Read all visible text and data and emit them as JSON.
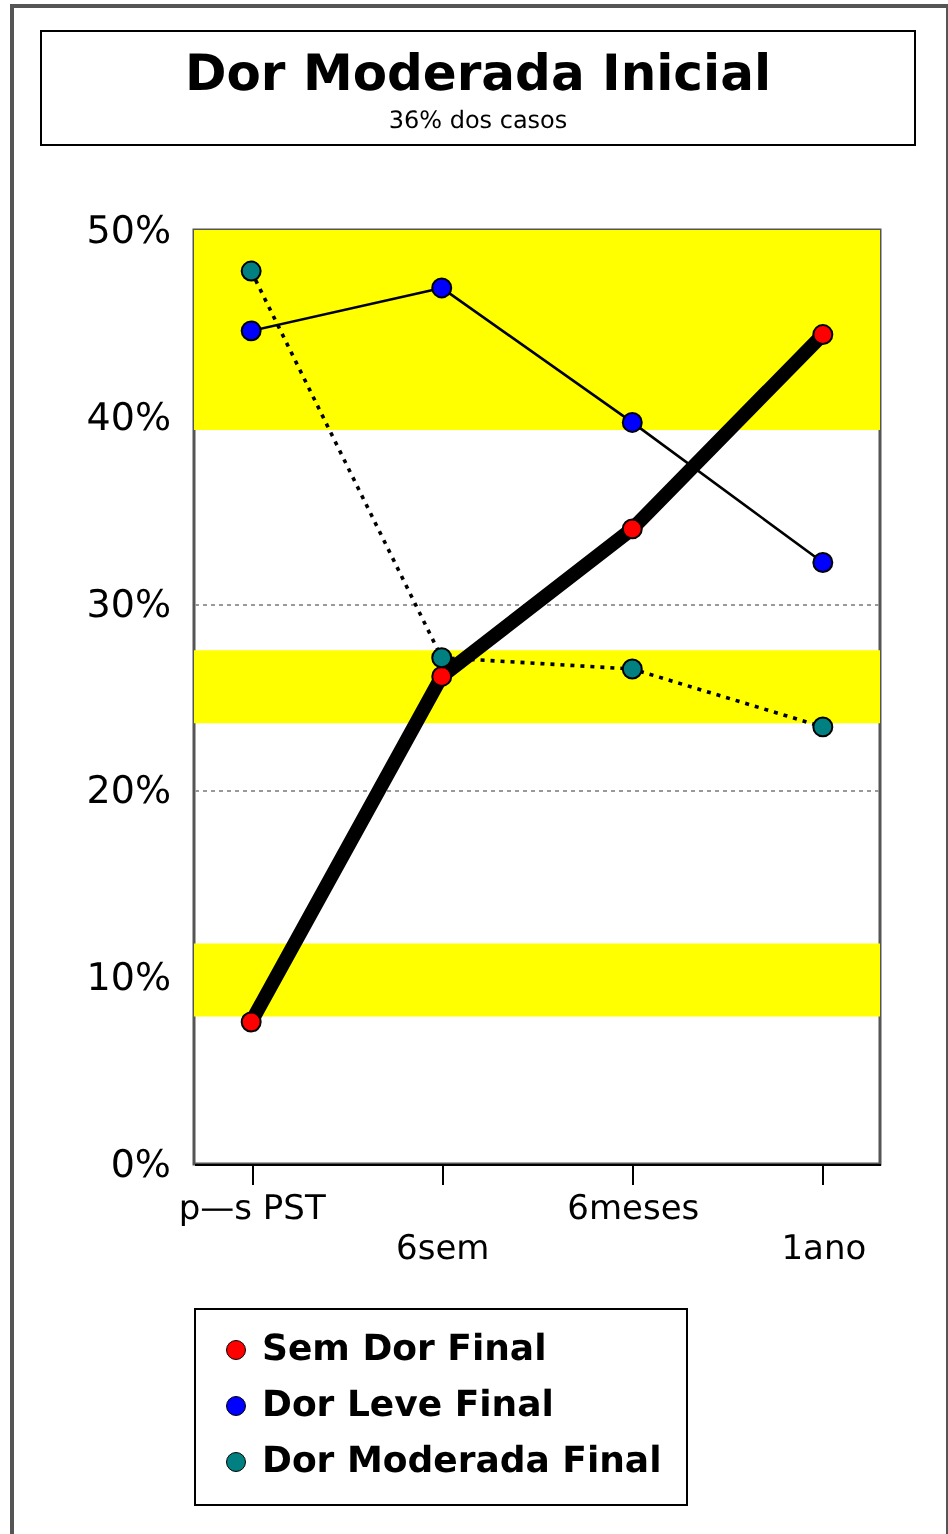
{
  "chart_data": {
    "type": "line",
    "title": "Dor Moderada Inicial",
    "subtitle": "36% dos casos",
    "categories": [
      "p—s PST",
      "6sem",
      "6meses",
      "1ano"
    ],
    "series": [
      {
        "name": "Sem Dor Final",
        "color": "#ff0000",
        "line_style": "solid",
        "values": [
          7.6,
          26.1,
          34.0,
          44.4
        ]
      },
      {
        "name": "Dor Leve Final",
        "color": "#0000ff",
        "line_style": "solid",
        "values": [
          44.6,
          46.9,
          39.7,
          32.2
        ]
      },
      {
        "name": "Dor Moderada Final",
        "color": "#008080",
        "line_style": "dotted",
        "values": [
          47.8,
          27.1,
          26.5,
          23.4
        ]
      }
    ],
    "ylim": [
      0,
      50
    ],
    "yticks": [
      {
        "value": 0,
        "label": "0%"
      },
      {
        "value": 10,
        "label": "10%"
      },
      {
        "value": 20,
        "label": "20%"
      },
      {
        "value": 30,
        "label": "30%"
      },
      {
        "value": 40,
        "label": "40%"
      },
      {
        "value": 50,
        "label": "50%"
      }
    ],
    "bands": [
      {
        "axis": "y",
        "from": 39.3,
        "to": 50,
        "color": "#ffff00"
      },
      {
        "axis": "y",
        "from": 23.6,
        "to": 27.5,
        "color": "#ffff00"
      },
      {
        "axis": "y",
        "from": 7.9,
        "to": 11.8,
        "color": "#ffff00"
      }
    ],
    "grid": "y",
    "marker": "circle",
    "legend": "bottom"
  }
}
